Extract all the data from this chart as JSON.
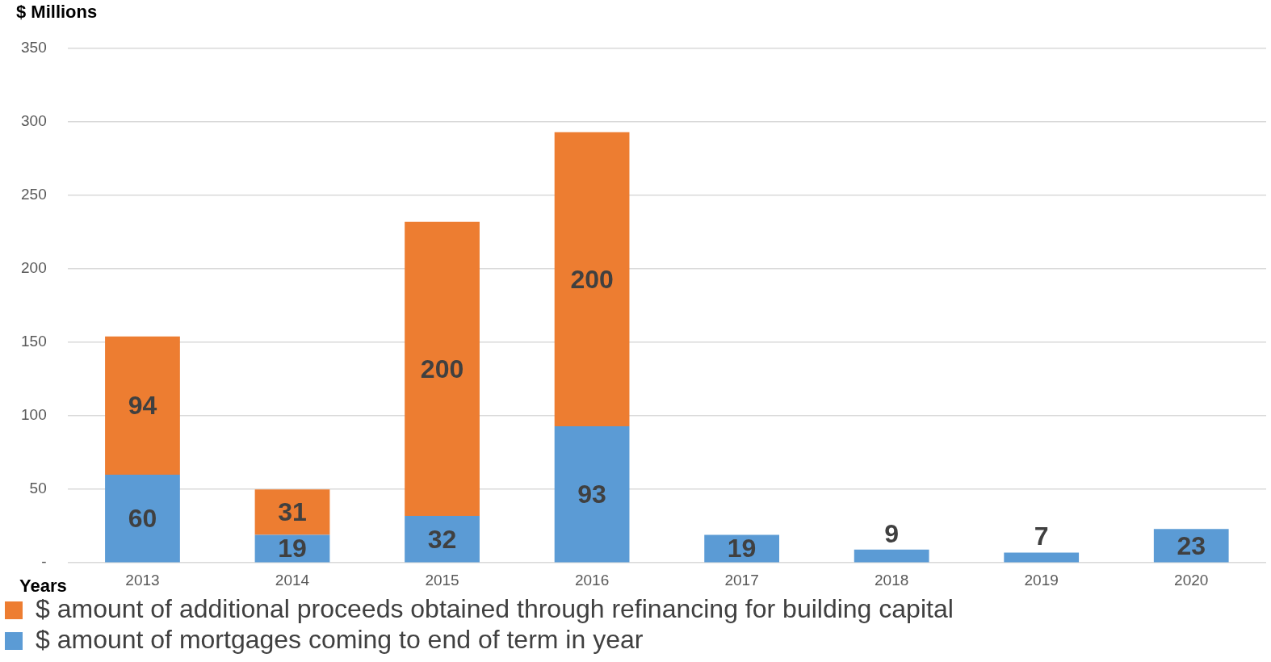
{
  "chart_data": {
    "type": "bar",
    "ylabel": "$ Millions",
    "xlabel": "Years",
    "categories": [
      "2013",
      "2014",
      "2015",
      "2016",
      "2017",
      "2018",
      "2019",
      "2020"
    ],
    "stacked": true,
    "series": [
      {
        "name": "$ amount of mortgages coming to end of term in year",
        "color": "#5b9bd5",
        "values": [
          60,
          19,
          32,
          93,
          19,
          9,
          7,
          23
        ]
      },
      {
        "name": "$ amount of additional proceeds obtained through refinancing for building capital",
        "color": "#ed7d31",
        "values": [
          94,
          31,
          200,
          200,
          null,
          null,
          null,
          null
        ]
      }
    ],
    "ylim": [
      0,
      350
    ],
    "yticks": [
      {
        "value": 0,
        "label": "-"
      },
      50,
      100,
      150,
      200,
      250,
      300,
      350
    ],
    "grid": "y",
    "legend": "bottom",
    "data_labels": true
  }
}
